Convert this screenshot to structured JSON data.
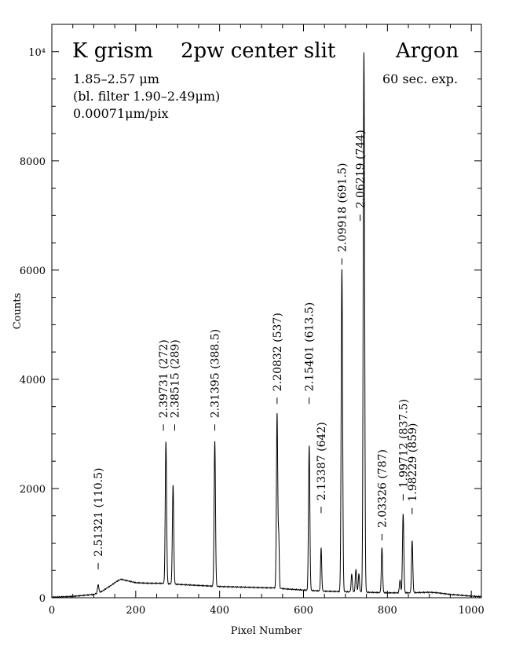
{
  "chart_data": {
    "type": "line",
    "title_left": "K grism",
    "title_center": "2pw center slit",
    "title_right": "Argon",
    "info_lines": [
      "1.85–2.57 μm",
      "(bl. filter 1.90–2.49μm)",
      "0.00071μm/pix"
    ],
    "exposure": "60 sec. exp.",
    "xlabel": "Pixel Number",
    "ylabel": "Counts",
    "xlim": [
      0,
      1024
    ],
    "ylim": [
      0,
      10500
    ],
    "x_ticks": [
      "0",
      "200",
      "400",
      "600",
      "800",
      "1000"
    ],
    "x_tick_values": [
      0,
      200,
      400,
      600,
      800,
      1000
    ],
    "y_ticks": [
      "0",
      "2000",
      "4000",
      "6000",
      "8000",
      "10⁴"
    ],
    "y_tick_values": [
      0,
      2000,
      4000,
      6000,
      8000,
      10000
    ],
    "baseline": [
      [
        0,
        10
      ],
      [
        50,
        25
      ],
      [
        100,
        60
      ],
      [
        120,
        120
      ],
      [
        140,
        220
      ],
      [
        155,
        300
      ],
      [
        165,
        340
      ],
      [
        175,
        320
      ],
      [
        200,
        275
      ],
      [
        230,
        265
      ],
      [
        260,
        265
      ],
      [
        300,
        245
      ],
      [
        350,
        225
      ],
      [
        400,
        205
      ],
      [
        450,
        195
      ],
      [
        500,
        185
      ],
      [
        530,
        180
      ],
      [
        560,
        160
      ],
      [
        600,
        140
      ],
      [
        650,
        120
      ],
      [
        700,
        110
      ],
      [
        750,
        100
      ],
      [
        800,
        90
      ],
      [
        850,
        90
      ],
      [
        900,
        100
      ],
      [
        920,
        90
      ],
      [
        950,
        60
      ],
      [
        1000,
        30
      ],
      [
        1024,
        20
      ]
    ],
    "peaks": [
      {
        "x": 110.5,
        "y": 150,
        "w": 1.5
      },
      {
        "x": 272,
        "y": 2600,
        "w": 1.6
      },
      {
        "x": 289,
        "y": 1800,
        "w": 1.6
      },
      {
        "x": 388.5,
        "y": 2650,
        "w": 1.6
      },
      {
        "x": 537,
        "y": 3200,
        "w": 1.6
      },
      {
        "x": 541,
        "y": 900,
        "w": 1.2
      },
      {
        "x": 613.5,
        "y": 2650,
        "w": 1.6
      },
      {
        "x": 642,
        "y": 780,
        "w": 1.4
      },
      {
        "x": 691.5,
        "y": 5900,
        "w": 1.7
      },
      {
        "x": 715,
        "y": 320,
        "w": 1.5
      },
      {
        "x": 725,
        "y": 420,
        "w": 1.5
      },
      {
        "x": 732,
        "y": 330,
        "w": 1.5
      },
      {
        "x": 744,
        "y": 9900,
        "w": 1.7
      },
      {
        "x": 787,
        "y": 820,
        "w": 1.5
      },
      {
        "x": 830,
        "y": 230,
        "w": 1.5
      },
      {
        "x": 837.5,
        "y": 1450,
        "w": 1.6
      },
      {
        "x": 859,
        "y": 950,
        "w": 1.5
      }
    ],
    "line_labels": [
      {
        "text": "2.51321 (110.5)",
        "x": 110.5,
        "y_start": 520
      },
      {
        "text": "2.39731 (272)",
        "x": 266,
        "y_start": 3060
      },
      {
        "text": "2.38515 (289)",
        "x": 293,
        "y_start": 3060
      },
      {
        "text": "2.31395 (388.5)",
        "x": 388.5,
        "y_start": 3060
      },
      {
        "text": "2.20832 (537)",
        "x": 537,
        "y_start": 3550
      },
      {
        "text": "2.15401 (613.5)",
        "x": 613.5,
        "y_start": 3550
      },
      {
        "text": "2.13387 (642)",
        "x": 642,
        "y_start": 1550
      },
      {
        "text": "2.09918 (691.5)",
        "x": 691.5,
        "y_start": 6100
      },
      {
        "text": "2.06219 (744)",
        "x": 735,
        "y_start": 6900
      },
      {
        "text": "2.03326 (787)",
        "x": 787,
        "y_start": 1050
      },
      {
        "text": "1.99712 (837.5)",
        "x": 837.5,
        "y_start": 1780
      },
      {
        "text": "1.98229 (859)",
        "x": 859,
        "y_start": 1530
      }
    ]
  }
}
